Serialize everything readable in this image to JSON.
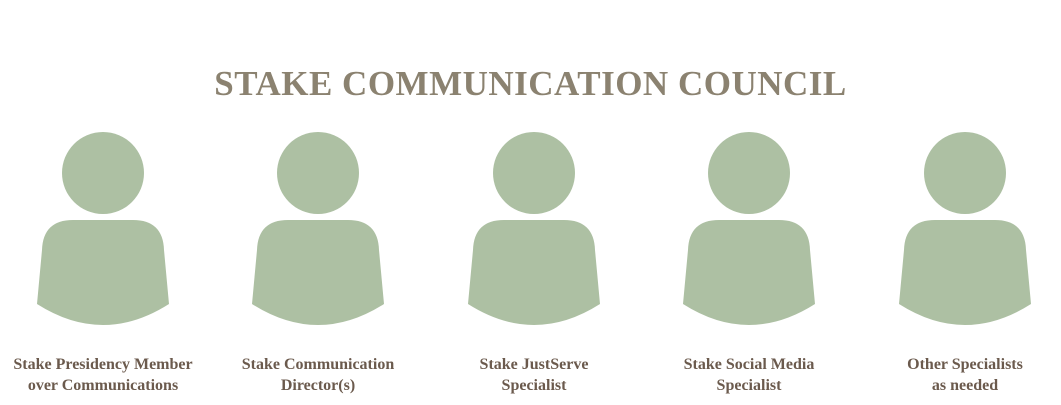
{
  "title": "STAKE COMMUNICATION COUNCIL",
  "colors": {
    "title": "#8b8270",
    "figure": "#adc0a3",
    "label": "#6b5a4d"
  },
  "members": [
    {
      "icon": "person-icon",
      "line1": "Stake Presidency Member",
      "line2": "over Communications"
    },
    {
      "icon": "person-icon",
      "line1": "Stake Communication",
      "line2": "Director(s)"
    },
    {
      "icon": "person-icon",
      "line1": "Stake JustServe",
      "line2": "Specialist"
    },
    {
      "icon": "person-icon",
      "line1": "Stake Social Media",
      "line2": "Specialist"
    },
    {
      "icon": "person-icon",
      "line1": "Other Specialists",
      "line2": "as needed"
    }
  ]
}
